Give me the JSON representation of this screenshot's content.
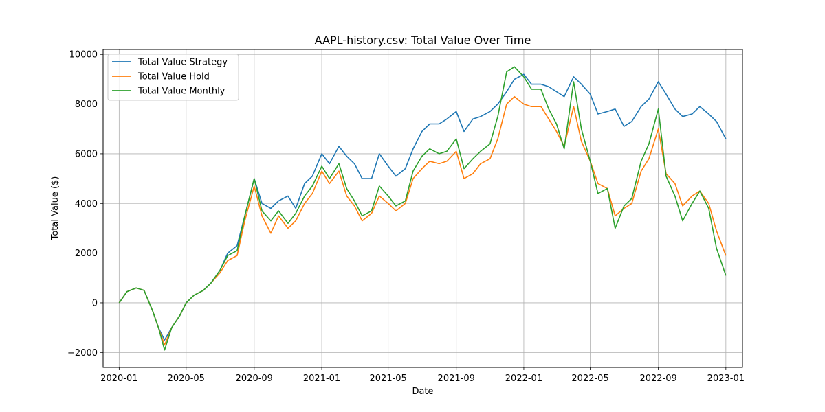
{
  "chart_data": {
    "type": "line",
    "title": "AAPL-history.csv: Total Value Over Time",
    "xlabel": "Date",
    "ylabel": "Total Value ($)",
    "xlim": [
      "2019-12-03",
      "2023-01-31"
    ],
    "ylim": [
      -2600,
      10200
    ],
    "x_ticks": [
      "2020-01-01",
      "2020-05-01",
      "2020-09-01",
      "2021-01-01",
      "2021-05-01",
      "2021-09-01",
      "2022-01-01",
      "2022-05-01",
      "2022-09-01",
      "2023-01-01"
    ],
    "x_tick_labels": [
      "2020-01",
      "2020-05",
      "2020-09",
      "2021-01",
      "2021-05",
      "2021-09",
      "2022-01",
      "2022-05",
      "2022-09",
      "2023-01"
    ],
    "y_ticks": [
      -2000,
      0,
      2000,
      4000,
      6000,
      8000,
      10000
    ],
    "y_tick_labels": [
      "−2000",
      "0",
      "2000",
      "4000",
      "6000",
      "8000",
      "10000"
    ],
    "grid": true,
    "legend_position": "upper-left",
    "x": [
      "2020-01-01",
      "2020-01-15",
      "2020-02-01",
      "2020-02-15",
      "2020-03-01",
      "2020-03-12",
      "2020-03-23",
      "2020-04-05",
      "2020-04-20",
      "2020-05-01",
      "2020-05-15",
      "2020-06-01",
      "2020-06-15",
      "2020-07-01",
      "2020-07-15",
      "2020-08-01",
      "2020-08-15",
      "2020-09-01",
      "2020-09-15",
      "2020-10-01",
      "2020-10-15",
      "2020-11-01",
      "2020-11-15",
      "2020-12-01",
      "2020-12-15",
      "2021-01-01",
      "2021-01-15",
      "2021-02-01",
      "2021-02-15",
      "2021-03-01",
      "2021-03-15",
      "2021-04-01",
      "2021-04-15",
      "2021-05-01",
      "2021-05-15",
      "2021-06-01",
      "2021-06-15",
      "2021-07-01",
      "2021-07-15",
      "2021-08-01",
      "2021-08-15",
      "2021-09-01",
      "2021-09-15",
      "2021-10-01",
      "2021-10-15",
      "2021-11-01",
      "2021-11-15",
      "2021-12-01",
      "2021-12-15",
      "2022-01-01",
      "2022-01-15",
      "2022-02-01",
      "2022-02-15",
      "2022-03-01",
      "2022-03-15",
      "2022-04-01",
      "2022-04-15",
      "2022-05-01",
      "2022-05-15",
      "2022-06-01",
      "2022-06-15",
      "2022-07-01",
      "2022-07-15",
      "2022-08-01",
      "2022-08-15",
      "2022-09-01",
      "2022-09-15",
      "2022-10-01",
      "2022-10-15",
      "2022-11-01",
      "2022-11-15",
      "2022-12-01",
      "2022-12-15",
      "2023-01-01"
    ],
    "series": [
      {
        "name": "Total Value Strategy",
        "color": "#1f77b4",
        "values": [
          0,
          450,
          600,
          500,
          -300,
          -1000,
          -1500,
          -1000,
          -500,
          0,
          300,
          500,
          800,
          1300,
          2000,
          2300,
          3500,
          5000,
          4000,
          3800,
          4100,
          4300,
          3800,
          4800,
          5100,
          6000,
          5600,
          6300,
          5900,
          5600,
          5000,
          5000,
          6000,
          5500,
          5100,
          5400,
          6200,
          6900,
          7200,
          7200,
          7400,
          7700,
          6900,
          7400,
          7500,
          7700,
          8000,
          8500,
          9000,
          9200,
          8800,
          8800,
          8700,
          8500,
          8300,
          9100,
          8800,
          8400,
          7600,
          7700,
          7800,
          7100,
          7300,
          7900,
          8200,
          8900,
          8400,
          7800,
          7500,
          7600,
          7900,
          7600,
          7300,
          6600
        ]
      },
      {
        "name": "Total Value Hold",
        "color": "#ff7f0e",
        "values": [
          0,
          450,
          600,
          500,
          -300,
          -1000,
          -1700,
          -1000,
          -500,
          0,
          300,
          500,
          800,
          1200,
          1700,
          1900,
          3300,
          4700,
          3500,
          2800,
          3500,
          3000,
          3300,
          4000,
          4400,
          5300,
          4800,
          5300,
          4300,
          3900,
          3300,
          3600,
          4300,
          4000,
          3700,
          4000,
          5000,
          5400,
          5700,
          5600,
          5700,
          6100,
          5000,
          5200,
          5600,
          5800,
          6600,
          8000,
          8300,
          8000,
          7900,
          7900,
          7400,
          6900,
          6300,
          7900,
          6500,
          5700,
          4800,
          4600,
          3500,
          3800,
          4000,
          5300,
          5800,
          7000,
          5200,
          4800,
          3900,
          4300,
          4500,
          4000,
          2900,
          1900
        ]
      },
      {
        "name": "Total Value Monthly",
        "color": "#2ca02c",
        "values": [
          0,
          450,
          600,
          500,
          -300,
          -1000,
          -1900,
          -1000,
          -500,
          0,
          300,
          500,
          800,
          1300,
          1900,
          2100,
          3500,
          5000,
          3700,
          3300,
          3700,
          3200,
          3600,
          4300,
          4700,
          5500,
          5000,
          5600,
          4600,
          4100,
          3500,
          3700,
          4700,
          4300,
          3900,
          4100,
          5300,
          5900,
          6200,
          6000,
          6100,
          6600,
          5400,
          5800,
          6100,
          6400,
          7500,
          9300,
          9500,
          9100,
          8600,
          8600,
          7800,
          7200,
          6200,
          8900,
          7000,
          5700,
          4400,
          4600,
          3000,
          3900,
          4200,
          5700,
          6400,
          7800,
          5100,
          4300,
          3300,
          4000,
          4500,
          3800,
          2200,
          1100
        ]
      }
    ]
  }
}
